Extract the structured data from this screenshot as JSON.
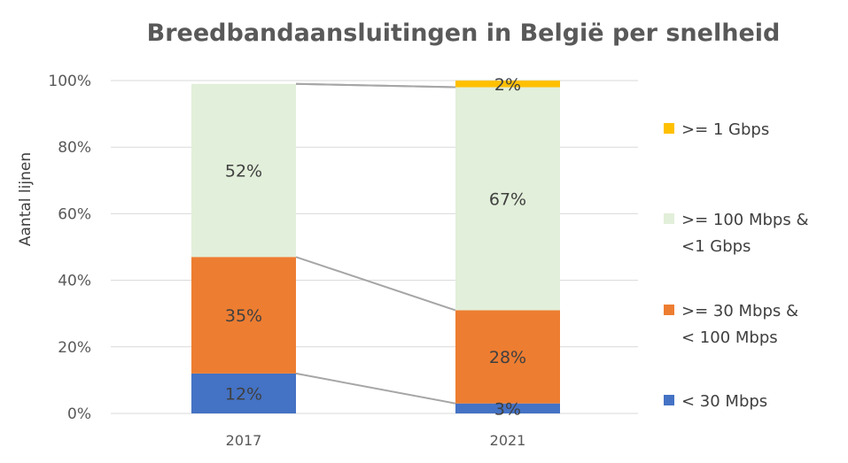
{
  "chart_data": {
    "type": "bar",
    "stacked": true,
    "title": "Breedbandaansluitingen in België per snelheid",
    "ylabel": "Aantal lijnen",
    "xlabel": "",
    "ylim": [
      0,
      100
    ],
    "y_ticks": [
      "0%",
      "20%",
      "40%",
      "60%",
      "80%",
      "100%"
    ],
    "categories": [
      "2017",
      "2021"
    ],
    "grid": true,
    "legend_position": "right",
    "series_lines": true,
    "series": [
      {
        "name": "< 30 Mbps",
        "values": [
          12,
          3
        ],
        "labels": [
          "12%",
          "3%"
        ],
        "color": "#4472C4"
      },
      {
        "name": ">= 30 Mbps & < 100 Mbps",
        "legend_lines": [
          ">= 30 Mbps &",
          "< 100 Mbps"
        ],
        "values": [
          35,
          28
        ],
        "labels": [
          "35%",
          "28%"
        ],
        "color": "#ED7D31"
      },
      {
        "name": ">= 100 Mbps & <1 Gbps",
        "legend_lines": [
          ">= 100 Mbps &",
          "<1 Gbps"
        ],
        "values": [
          52,
          67
        ],
        "labels": [
          "52%",
          "67%"
        ],
        "color": "#E2EFDA"
      },
      {
        "name": ">= 1 Gbps",
        "legend_lines": [
          ">= 1 Gbps"
        ],
        "values": [
          0,
          2
        ],
        "labels": [
          "",
          "2%"
        ],
        "color": "#FFC000"
      }
    ]
  }
}
